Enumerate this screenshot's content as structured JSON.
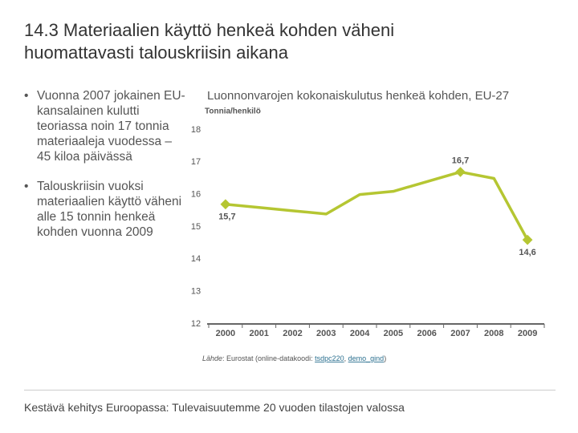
{
  "title": "14.3 Materiaalien käyttö henkeä kohden väheni huomattavasti talouskriisin aikana",
  "bullets": [
    "Vuonna 2007 jokainen EU-kansalainen kulutti teoriassa noin 17 tonnia materiaaleja vuodessa – 45 kiloa päivässä",
    "Talouskriisin vuoksi materiaalien käyttö väheni alle 15 tonnin henkeä kohden vuonna 2009"
  ],
  "footer": "Kestävä kehitys Euroopassa: Tulevaisuutemme 20 vuoden tilastojen valossa",
  "chart_data": {
    "type": "line",
    "title": "Luonnonvarojen kokonaiskulutus henkeä kohden, EU-27",
    "y_label": "Tonnia/henkilö",
    "categories": [
      "2000",
      "2001",
      "2002",
      "2003",
      "2004",
      "2005",
      "2006",
      "2007",
      "2008",
      "2009"
    ],
    "values": [
      15.7,
      15.6,
      15.5,
      15.4,
      16.0,
      16.1,
      16.4,
      16.7,
      16.5,
      14.6
    ],
    "value_labels": [
      "15,7",
      null,
      null,
      null,
      null,
      null,
      null,
      "16,7",
      null,
      "14,6"
    ],
    "color": "#b5c632",
    "ylim": [
      12,
      18
    ],
    "yticks": [
      12,
      13,
      14,
      15,
      16,
      17,
      18
    ],
    "source": [
      "Lähde",
      ": Eurostat (online-datakoodi: ",
      "tsdpc220",
      ", ",
      "demo_gind",
      ")"
    ]
  }
}
